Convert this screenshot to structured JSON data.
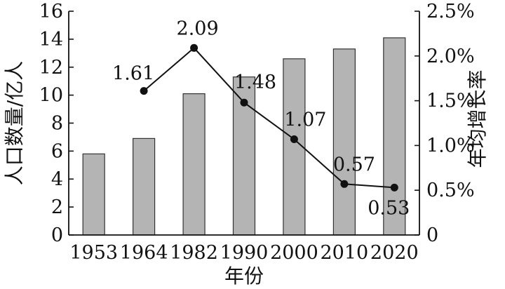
{
  "chart_data": {
    "type": "bar+line",
    "title": "",
    "xlabel": "年份",
    "categories": [
      "1953",
      "1964",
      "1982",
      "1990",
      "2000",
      "2010",
      "2020"
    ],
    "series": [
      {
        "type": "bar",
        "axis": "left",
        "values": [
          5.8,
          6.9,
          10.1,
          11.3,
          12.6,
          13.3,
          14.1
        ]
      },
      {
        "type": "line",
        "axis": "right",
        "values": [
          null,
          1.61,
          2.09,
          1.48,
          1.07,
          0.57,
          0.53
        ],
        "labels": [
          "",
          "1.61",
          "2.09",
          "1.48",
          "1.07",
          "0.57",
          "0.53"
        ]
      }
    ],
    "y_left": {
      "label": "人口数量/亿人",
      "lim": [
        0,
        16
      ],
      "ticks": [
        "0",
        "2",
        "4",
        "6",
        "8",
        "10",
        "12",
        "14",
        "16"
      ]
    },
    "y_right": {
      "label": "年均增长率",
      "lim": [
        0,
        2.5
      ],
      "ticks": [
        "0",
        "0.5%",
        "1.0%",
        "1.5%",
        "2.0%",
        "2.5%"
      ]
    },
    "colors": {
      "bar_fill": "#b4b4b4",
      "bar_stroke": "#333333",
      "line": "#111111",
      "axis": "#111111"
    }
  }
}
